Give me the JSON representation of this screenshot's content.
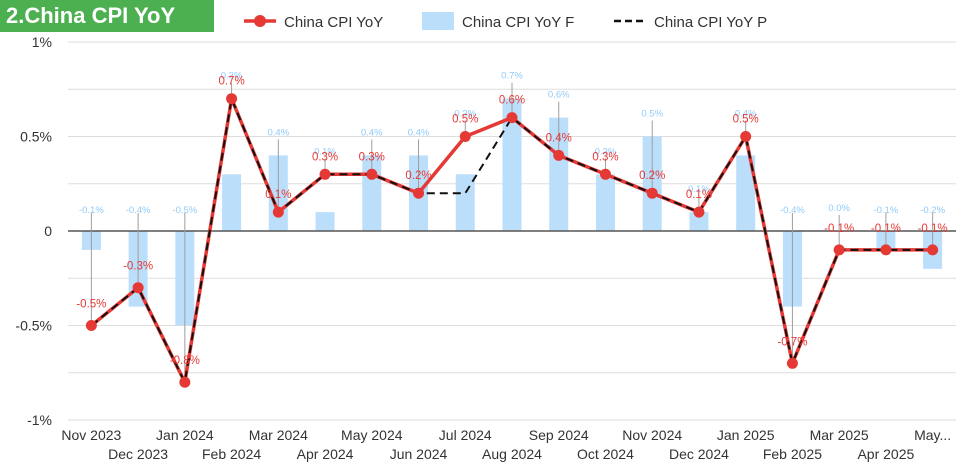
{
  "title": "2.China CPI YoY",
  "chart_data": {
    "type": "bar",
    "title": "2.China CPI YoY",
    "categories": [
      "Nov 2023",
      "Dec 2023",
      "Jan 2024",
      "Feb 2024",
      "Mar 2024",
      "Apr 2024",
      "May 2024",
      "Jun 2024",
      "Jul 2024",
      "Aug 2024",
      "Sep 2024",
      "Oct 2024",
      "Nov 2024",
      "Dec 2024",
      "Jan 2025",
      "Feb 2025",
      "Mar 2025",
      "Apr 2025",
      "May..."
    ],
    "ylim": [
      -1,
      1
    ],
    "yticks": [
      1,
      0.5,
      0,
      -0.5,
      -1
    ],
    "ytick_labels": [
      "1%",
      "0.5%",
      "0",
      "-0.5%",
      "-1%"
    ],
    "grid": true,
    "legend_position": "top",
    "series": [
      {
        "name": "China CPI YoY",
        "kind": "line",
        "color": "#e53935",
        "values": [
          -0.5,
          -0.3,
          -0.8,
          0.7,
          0.1,
          0.3,
          0.3,
          0.2,
          0.5,
          0.6,
          0.4,
          0.3,
          0.2,
          0.1,
          0.5,
          -0.7,
          -0.1,
          -0.1,
          -0.1
        ],
        "labels": [
          "-0.5%",
          "-0.3%",
          "-0.8%",
          "0.7%",
          "0.1%",
          "0.3%",
          "0.3%",
          "0.2%",
          "0.5%",
          "0.6%",
          "0.4%",
          "0.3%",
          "0.2%",
          "0.1%",
          "0.5%",
          "-0.7%",
          "-0.1%",
          "-0.1%",
          "-0.1%"
        ]
      },
      {
        "name": "China CPI YoY F",
        "kind": "bar",
        "color": "#bbdefb",
        "values": [
          -0.1,
          -0.4,
          -0.5,
          0.3,
          0.4,
          0.1,
          0.4,
          0.4,
          0.3,
          0.7,
          0.6,
          0.3,
          0.5,
          0.1,
          0.4,
          -0.4,
          0.0,
          -0.1,
          -0.2
        ],
        "labels": [
          "-0.1%",
          "-0.4%",
          "-0.5%",
          "0.3%",
          "0.4%",
          "0.1%",
          "0.4%",
          "0.4%",
          "0.3%",
          "0.7%",
          "0.6%",
          "0.3%",
          "0.5%",
          "0.1%",
          "0.4%",
          "-0.4%",
          "0.0%",
          "-0.1%",
          "-0.2%"
        ]
      },
      {
        "name": "China CPI YoY P",
        "kind": "line",
        "style": "dashed",
        "color": "#111111",
        "values": [
          -0.5,
          -0.3,
          -0.8,
          0.7,
          0.1,
          0.3,
          0.3,
          0.2,
          0.2,
          0.6,
          0.4,
          0.3,
          0.2,
          0.1,
          0.5,
          -0.7,
          -0.1,
          -0.1,
          -0.1
        ]
      }
    ]
  }
}
